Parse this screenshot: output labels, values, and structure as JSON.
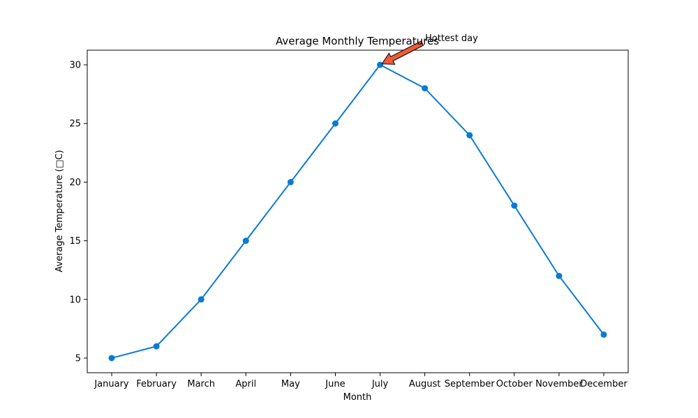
{
  "chart_data": {
    "type": "line",
    "title": "Average Monthly Temperatures",
    "xlabel": "Month",
    "ylabel": "Average Temperature (□C)",
    "categories": [
      "January",
      "February",
      "March",
      "April",
      "May",
      "June",
      "July",
      "August",
      "September",
      "October",
      "November",
      "December"
    ],
    "series": [
      {
        "values": [
          5,
          6,
          10,
          15,
          20,
          25,
          30,
          28,
          24,
          18,
          12,
          7
        ]
      }
    ],
    "ylim": [
      3.75,
      31.25
    ],
    "yticks": [
      5,
      10,
      15,
      20,
      25,
      30
    ],
    "grid": false,
    "colors": {
      "line": "#0a7ad2",
      "marker": "#0a7ad2",
      "arrow_fill": "#ee5a3a",
      "arrow_edge": "#000000"
    },
    "annotation": {
      "text": "Hottest day",
      "category": "July",
      "value": 30
    }
  }
}
